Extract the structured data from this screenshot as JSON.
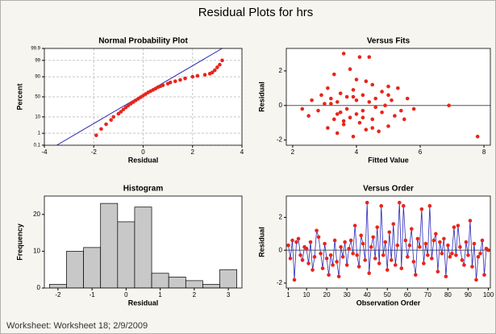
{
  "title": "Residual Plots for hrs",
  "footer": "Worksheet: Worksheet 18; 2/9/2009",
  "chart_data": [
    {
      "type": "probability",
      "title": "Normal Probability Plot",
      "x_label": "Residual",
      "y_label": "Percent",
      "xlim": [
        -4,
        4
      ],
      "xticks": [
        -4,
        -2,
        0,
        2,
        4
      ],
      "ylim": [
        0.1,
        99.9
      ],
      "yticks": [
        0.1,
        1,
        10,
        50,
        90,
        99,
        99.9
      ],
      "yscale": "probability",
      "grid": true,
      "color": "#e8251b",
      "line_color": "#2b2bb8",
      "points": {
        "x": [
          -1.9,
          -1.7,
          -1.5,
          -1.3,
          -1.2,
          -1.0,
          -0.9,
          -0.8,
          -0.7,
          -0.6,
          -0.5,
          -0.4,
          -0.3,
          -0.2,
          -0.1,
          0.0,
          0.1,
          0.2,
          0.3,
          0.4,
          0.5,
          0.6,
          0.7,
          0.8,
          1.0,
          1.1,
          1.3,
          1.5,
          1.7,
          2.0,
          2.2,
          2.5,
          2.7,
          2.8,
          2.9,
          3.0,
          3.1,
          3.2
        ],
        "y": [
          0.7,
          2,
          4,
          7,
          10,
          14,
          17,
          21,
          25,
          29,
          33,
          37,
          41,
          45,
          49,
          53,
          57,
          61,
          64,
          67,
          70,
          73,
          75,
          77,
          80,
          82,
          84,
          86,
          88,
          90,
          91,
          92,
          93,
          94,
          95.5,
          97,
          98,
          99
        ]
      },
      "line": {
        "x": [
          -3.5,
          3.2
        ],
        "y": [
          0.1,
          99.9
        ]
      }
    },
    {
      "type": "scatter",
      "title": "Versus Fits",
      "x_label": "Fitted Value",
      "y_label": "Residual",
      "xlim": [
        1.8,
        8.2
      ],
      "xticks": [
        2,
        4,
        6,
        8
      ],
      "ylim": [
        -2.3,
        3.3
      ],
      "yticks": [
        -2,
        0,
        2
      ],
      "reference_line": 0,
      "color": "#e8251b",
      "x": [
        2.3,
        2.5,
        2.6,
        2.8,
        2.9,
        3.0,
        3.1,
        3.1,
        3.2,
        3.3,
        3.3,
        3.4,
        3.4,
        3.5,
        3.5,
        3.6,
        3.6,
        3.7,
        3.7,
        3.8,
        3.8,
        3.9,
        3.9,
        4.0,
        4.0,
        4.1,
        4.1,
        4.2,
        4.2,
        4.3,
        4.3,
        4.4,
        4.5,
        4.5,
        4.6,
        4.6,
        4.7,
        4.8,
        4.8,
        4.9,
        5.0,
        5.0,
        5.1,
        5.2,
        5.3,
        5.4,
        5.5,
        5.6,
        5.8,
        6.9,
        7.8,
        3.6,
        4.0,
        3.4,
        4.4,
        3.2,
        5.0,
        4.2,
        3.9,
        4.5
      ],
      "values": [
        -0.2,
        -0.6,
        0.3,
        -0.3,
        0.6,
        0.1,
        -1.3,
        1.0,
        0.4,
        -0.8,
        1.8,
        0.2,
        -1.6,
        0.7,
        -0.4,
        3.0,
        -1.1,
        0.5,
        -0.2,
        2.1,
        -0.7,
        0.9,
        -1.8,
        0.3,
        -0.5,
        2.8,
        -1.0,
        0.6,
        -0.3,
        1.4,
        -1.4,
        0.2,
        -0.8,
        1.2,
        0.4,
        -0.1,
        -1.5,
        0.8,
        -0.4,
        0.0,
        0.6,
        -1.2,
        0.3,
        -0.6,
        1.0,
        -0.3,
        -0.8,
        0.4,
        -0.2,
        0.0,
        -1.8,
        -0.9,
        1.5,
        -0.5,
        2.8,
        0.1,
        1.1,
        -0.7,
        0.5,
        -1.3
      ]
    },
    {
      "type": "histogram",
      "title": "Histogram",
      "x_label": "Residual",
      "y_label": "Frequency",
      "xlim": [
        -2.4,
        3.4
      ],
      "xticks": [
        -2,
        -1,
        0,
        1,
        2,
        3
      ],
      "ylim": [
        0,
        25
      ],
      "yticks": [
        0,
        10,
        20
      ],
      "color": "#c8c8c8",
      "bins": [
        -2.25,
        -1.75,
        -1.25,
        -0.75,
        -0.25,
        0.25,
        0.75,
        1.25,
        1.75,
        2.25,
        2.75,
        3.25
      ],
      "values": [
        1,
        10,
        11,
        23,
        18,
        22,
        4,
        3,
        2,
        1,
        5
      ]
    },
    {
      "type": "line",
      "title": "Versus Order",
      "x_label": "Observation Order",
      "y_label": "Residual",
      "xlim": [
        0,
        101
      ],
      "xticks": [
        1,
        10,
        20,
        30,
        40,
        50,
        60,
        70,
        80,
        90,
        100
      ],
      "ylim": [
        -2.3,
        3.3
      ],
      "yticks": [
        -2,
        0,
        2
      ],
      "reference_line": 0,
      "color": "#e8251b",
      "line_color": "#2b2bb8",
      "values": [
        0.3,
        -0.5,
        0.6,
        -1.8,
        0.5,
        0.7,
        -0.3,
        -0.6,
        0.2,
        0.1,
        -0.8,
        0.5,
        -1.2,
        -0.4,
        1.2,
        0.8,
        -0.2,
        -1.1,
        0.4,
        -0.5,
        -1.5,
        -0.3,
        -0.9,
        0.6,
        -0.7,
        -1.6,
        0.2,
        -0.4,
        0.5,
        -0.9,
        0.1,
        0.6,
        -0.2,
        1.5,
        -0.3,
        -1.0,
        0.9,
        0.4,
        -0.6,
        2.9,
        -1.4,
        0.2,
        0.8,
        -0.5,
        1.4,
        -0.8,
        2.7,
        -0.3,
        0.5,
        -1.2,
        1.1,
        -0.6,
        1.6,
        -0.9,
        0.3,
        2.9,
        -1.1,
        2.7,
        0.6,
        -0.4,
        0.3,
        1.3,
        -0.7,
        -1.5,
        0.7,
        0.2,
        2.5,
        -0.8,
        0.4,
        -0.3,
        2.7,
        -0.5,
        0.6,
        1.0,
        -1.3,
        0.5,
        -0.2,
        0.7,
        -1.6,
        0.3,
        -0.4,
        -0.2,
        1.4,
        -0.3,
        1.5,
        0.2,
        -0.6,
        -0.9,
        0.5,
        -0.3,
        1.8,
        -1.0,
        0.4,
        -1.8,
        -0.4,
        -0.2,
        0.6,
        -1.5,
        0.1,
        0.0
      ]
    }
  ]
}
